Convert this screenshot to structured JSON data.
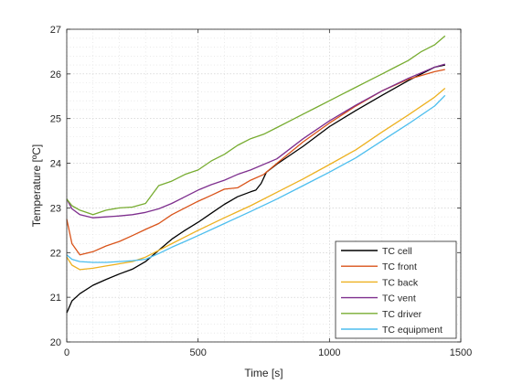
{
  "chart_data": {
    "type": "line",
    "xlabel": "Time [s]",
    "ylabel": "Temperature [ºC]",
    "xlim": [
      0,
      1500
    ],
    "ylim": [
      20,
      27
    ],
    "xticks": [
      0,
      500,
      1000,
      1500
    ],
    "yticks": [
      20,
      21,
      22,
      23,
      24,
      25,
      26,
      27
    ],
    "x_tick_labels": [
      "0",
      "500",
      "1000",
      "1500"
    ],
    "y_tick_labels": [
      "20",
      "21",
      "22",
      "23",
      "24",
      "25",
      "26",
      "27"
    ],
    "grid": "major and minor, dotted",
    "legend_position": "bottom-right",
    "series": [
      {
        "name": "TC cell",
        "color": "#000000",
        "x": [
          0,
          20,
          50,
          100,
          150,
          200,
          250,
          300,
          350,
          400,
          450,
          500,
          550,
          600,
          650,
          700,
          720,
          740,
          760,
          800,
          900,
          1000,
          1100,
          1200,
          1300,
          1400,
          1440
        ],
        "y": [
          20.65,
          20.92,
          21.08,
          21.27,
          21.4,
          21.52,
          21.63,
          21.8,
          22.05,
          22.3,
          22.5,
          22.68,
          22.88,
          23.08,
          23.25,
          23.36,
          23.4,
          23.55,
          23.8,
          23.98,
          24.38,
          24.82,
          25.18,
          25.52,
          25.85,
          26.15,
          26.2
        ]
      },
      {
        "name": "TC front",
        "color": "#D95319",
        "x": [
          0,
          20,
          50,
          100,
          150,
          200,
          250,
          300,
          350,
          400,
          450,
          500,
          550,
          600,
          650,
          700,
          750,
          800,
          900,
          1000,
          1100,
          1200,
          1300,
          1400,
          1440
        ],
        "y": [
          22.75,
          22.2,
          21.95,
          22.02,
          22.15,
          22.25,
          22.38,
          22.52,
          22.65,
          22.85,
          23.0,
          23.15,
          23.28,
          23.42,
          23.45,
          23.62,
          23.75,
          24.0,
          24.48,
          24.9,
          25.28,
          25.62,
          25.88,
          26.05,
          26.1
        ]
      },
      {
        "name": "TC back",
        "color": "#EDB120",
        "x": [
          0,
          20,
          50,
          100,
          150,
          200,
          250,
          300,
          350,
          400,
          450,
          500,
          600,
          700,
          800,
          900,
          1000,
          1100,
          1200,
          1300,
          1400,
          1440
        ],
        "y": [
          21.9,
          21.72,
          21.62,
          21.65,
          21.7,
          21.75,
          21.8,
          21.9,
          22.05,
          22.2,
          22.35,
          22.5,
          22.78,
          23.05,
          23.35,
          23.65,
          23.97,
          24.3,
          24.7,
          25.08,
          25.48,
          25.68
        ]
      },
      {
        "name": "TC vent",
        "color": "#7E2F8E",
        "x": [
          0,
          20,
          50,
          100,
          150,
          200,
          250,
          300,
          350,
          400,
          450,
          500,
          550,
          600,
          650,
          700,
          800,
          900,
          1000,
          1100,
          1200,
          1300,
          1400,
          1440
        ],
        "y": [
          23.2,
          22.98,
          22.85,
          22.78,
          22.8,
          22.82,
          22.85,
          22.9,
          22.98,
          23.1,
          23.25,
          23.4,
          23.52,
          23.62,
          23.75,
          23.85,
          24.1,
          24.55,
          24.95,
          25.3,
          25.62,
          25.9,
          26.15,
          26.22
        ]
      },
      {
        "name": "TC driver",
        "color": "#77AC30",
        "x": [
          0,
          20,
          50,
          100,
          150,
          200,
          250,
          300,
          350,
          400,
          450,
          500,
          550,
          600,
          650,
          700,
          750,
          800,
          850,
          900,
          950,
          1000,
          1050,
          1100,
          1150,
          1200,
          1250,
          1300,
          1350,
          1400,
          1440
        ],
        "y": [
          23.2,
          23.05,
          22.95,
          22.85,
          22.95,
          23.0,
          23.02,
          23.1,
          23.5,
          23.6,
          23.75,
          23.85,
          24.05,
          24.2,
          24.4,
          24.55,
          24.65,
          24.8,
          24.95,
          25.1,
          25.25,
          25.4,
          25.55,
          25.7,
          25.85,
          26.0,
          26.15,
          26.3,
          26.5,
          26.65,
          26.85
        ]
      },
      {
        "name": "TC equipment",
        "color": "#4DBEEE",
        "x": [
          0,
          20,
          50,
          100,
          150,
          200,
          250,
          300,
          350,
          400,
          450,
          500,
          600,
          700,
          800,
          900,
          1000,
          1100,
          1200,
          1300,
          1400,
          1440
        ],
        "y": [
          21.95,
          21.85,
          21.8,
          21.78,
          21.78,
          21.8,
          21.82,
          21.85,
          21.98,
          22.12,
          22.25,
          22.38,
          22.65,
          22.92,
          23.2,
          23.5,
          23.8,
          24.12,
          24.5,
          24.88,
          25.28,
          25.52
        ]
      }
    ]
  }
}
